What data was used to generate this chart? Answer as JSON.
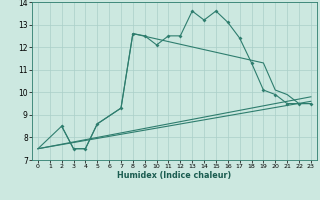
{
  "xlabel": "Humidex (Indice chaleur)",
  "xlim": [
    -0.5,
    23.5
  ],
  "ylim": [
    7,
    14
  ],
  "xticks": [
    0,
    1,
    2,
    3,
    4,
    5,
    6,
    7,
    8,
    9,
    10,
    11,
    12,
    13,
    14,
    15,
    16,
    17,
    18,
    19,
    20,
    21,
    22,
    23
  ],
  "yticks": [
    7,
    8,
    9,
    10,
    11,
    12,
    13,
    14
  ],
  "bg_color": "#cce8e0",
  "line_color": "#2e7d6e",
  "grid_color": "#aacfc8",
  "line1_x": [
    2,
    3,
    4,
    5,
    7,
    8,
    9,
    10,
    11,
    12,
    13,
    14,
    15,
    16,
    17,
    18,
    19,
    20,
    21,
    22,
    23
  ],
  "line1_y": [
    8.5,
    7.5,
    7.5,
    8.6,
    9.3,
    12.6,
    12.5,
    12.1,
    12.5,
    12.5,
    13.6,
    13.2,
    13.6,
    13.1,
    12.4,
    11.3,
    10.1,
    9.9,
    9.5,
    9.5,
    9.5
  ],
  "line2_x": [
    0,
    2,
    3,
    4,
    5,
    7,
    8,
    19,
    20,
    21,
    22,
    23
  ],
  "line2_y": [
    7.5,
    8.5,
    7.5,
    7.5,
    8.6,
    9.3,
    12.6,
    11.3,
    10.1,
    9.9,
    9.5,
    9.5
  ],
  "line3_x": [
    0,
    23
  ],
  "line3_y": [
    7.5,
    9.6
  ],
  "line4_x": [
    0,
    23
  ],
  "line4_y": [
    7.5,
    9.8
  ]
}
